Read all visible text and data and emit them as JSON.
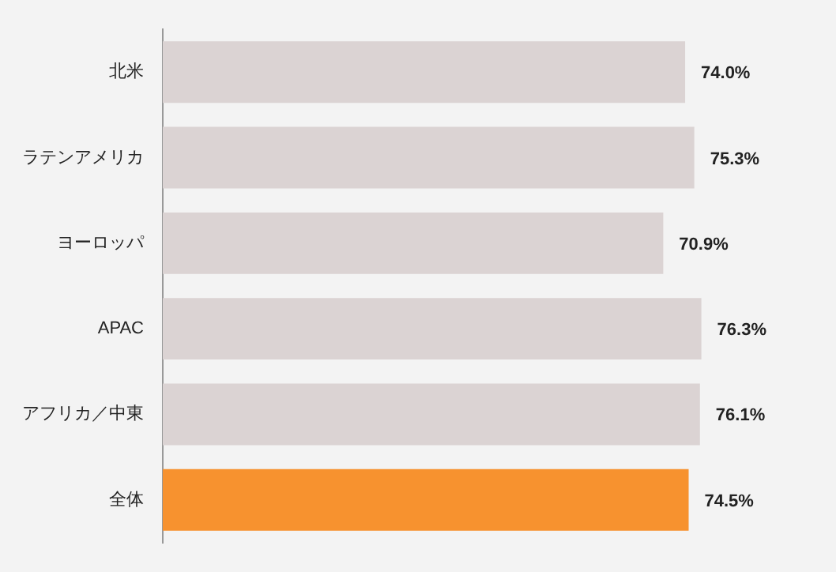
{
  "chart_data": {
    "type": "bar",
    "orientation": "horizontal",
    "categories": [
      "北米",
      "ラテンアメリカ",
      "ヨーロッパ",
      "APAC",
      "アフリカ／中東",
      "全体"
    ],
    "values": [
      74.0,
      75.3,
      70.9,
      76.3,
      76.1,
      74.5
    ],
    "colors": [
      "#dbd3d3",
      "#dbd3d3",
      "#dbd3d3",
      "#dbd3d3",
      "#dbd3d3",
      "#f7922f"
    ],
    "value_labels": [
      "74.0%",
      "75.3%",
      "70.9%",
      "76.3%",
      "76.1%",
      "74.5%"
    ],
    "legend": false,
    "tick_labels": "y"
  }
}
